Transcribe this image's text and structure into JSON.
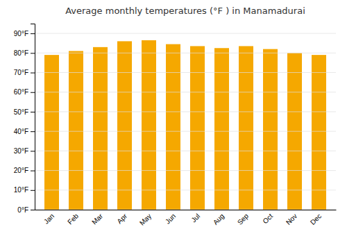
{
  "chart_data": {
    "type": "bar",
    "title": "Average monthly temperatures (°F ) in Manamadurai",
    "categories": [
      "Jan",
      "Feb",
      "Mar",
      "Apr",
      "May",
      "Jun",
      "Jul",
      "Aug",
      "Sep",
      "Oct",
      "Nov",
      "Dec"
    ],
    "values": [
      79,
      81,
      83,
      86,
      86.5,
      84.5,
      83.5,
      82.5,
      83.5,
      82,
      80,
      79
    ],
    "color": "#F5A800",
    "ylim": [
      0,
      95
    ],
    "yticks": [
      {
        "value": 0,
        "label": "0°F"
      },
      {
        "value": 10,
        "label": "10°F"
      },
      {
        "value": 20,
        "label": "20°F"
      },
      {
        "value": 30,
        "label": "30°F"
      },
      {
        "value": 40,
        "label": "40°F"
      },
      {
        "value": 50,
        "label": "50°F"
      },
      {
        "value": 60,
        "label": "60°F"
      },
      {
        "value": 70,
        "label": "70°F"
      },
      {
        "value": 80,
        "label": "80°F"
      },
      {
        "value": 90,
        "label": "90°F"
      }
    ],
    "grid": true
  }
}
